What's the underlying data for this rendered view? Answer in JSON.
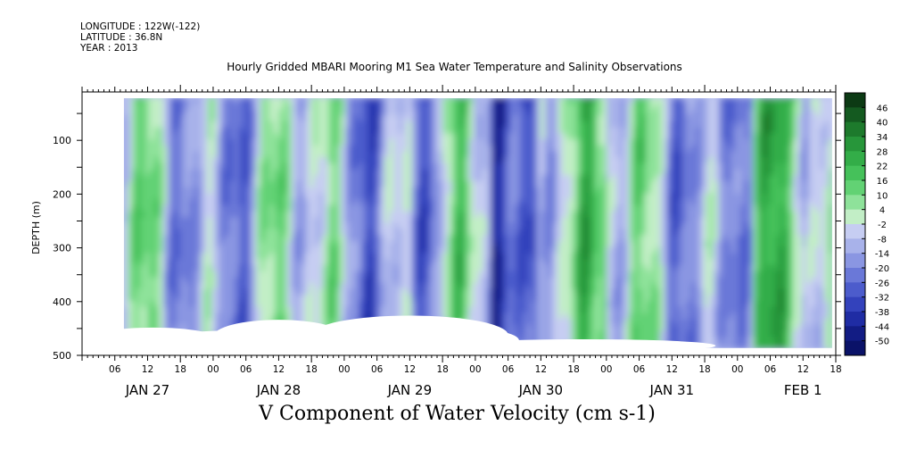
{
  "header": {
    "longitude": "LONGITUDE : 122W(-122)",
    "latitude": "LATITUDE : 36.8N",
    "year": "YEAR : 2013"
  },
  "chart_data": {
    "type": "heatmap",
    "title": "Hourly Gridded MBARI Mooring M1 Sea Water Temperature and Salinity Observations",
    "bottom_title": "V Component of Water Velocity (cm s-1)",
    "ylabel": "DEPTH (m)",
    "y_axis": {
      "ticks": [
        100,
        200,
        300,
        400,
        500
      ],
      "range": [
        10,
        500
      ],
      "inverted": true
    },
    "x_axis": {
      "range_hours": [
        0,
        138
      ],
      "hour_labels": [
        "06",
        "12",
        "18",
        "00",
        "06",
        "12",
        "18",
        "00",
        "06",
        "12",
        "18",
        "00",
        "06",
        "12",
        "18",
        "00",
        "06",
        "12",
        "18",
        "00",
        "06",
        "12",
        "18"
      ],
      "day_labels": [
        "JAN 27",
        "JAN 28",
        "JAN 29",
        "JAN 30",
        "JAN 31",
        "FEB  1"
      ]
    },
    "colorbar": {
      "labels": [
        "46",
        "40",
        "34",
        "28",
        "22",
        "16",
        "10",
        "4",
        "-2",
        "-8",
        "-14",
        "-20",
        "-26",
        "-32",
        "-38",
        "-44",
        "-50"
      ],
      "colors": [
        "#0c3a14",
        "#145a20",
        "#1d7a2c",
        "#27963a",
        "#33ad48",
        "#45c15a",
        "#62d274",
        "#8ee29a",
        "#c2eec6",
        "#c6cdf2",
        "#a8b2ea",
        "#8a96e2",
        "#6a78d8",
        "#4c5ccc",
        "#3342bc",
        "#1f2ca4",
        "#121c84",
        "#0a1268"
      ]
    },
    "field_note": "Alternating blue (negative) and green (positive) velocity bands over time; white regions indicate missing data near the bottom."
  }
}
